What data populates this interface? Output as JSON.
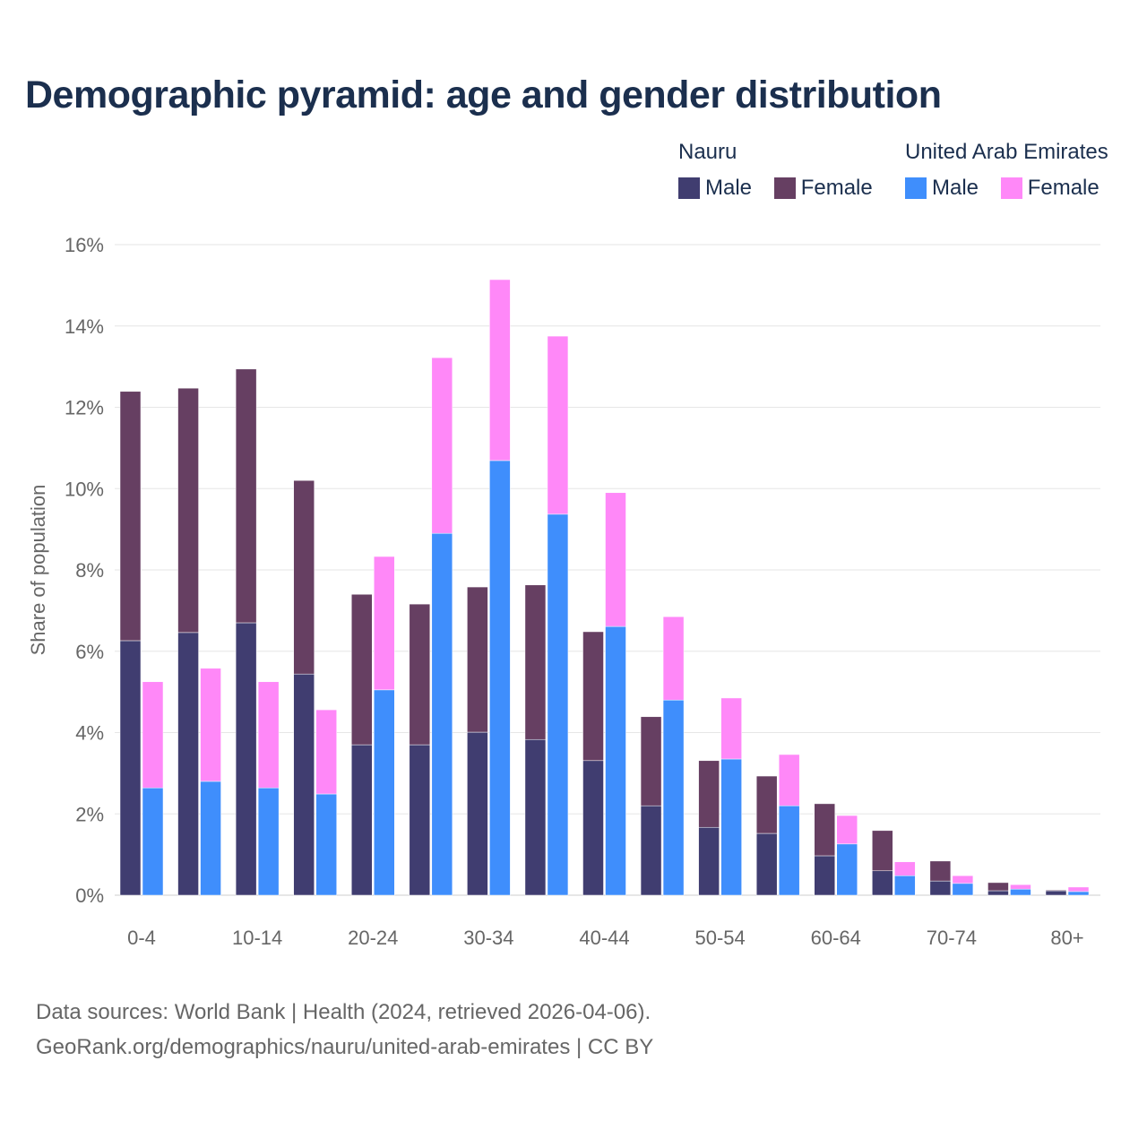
{
  "chart_data": {
    "type": "bar",
    "title": "Demographic pyramid: age and gender distribution",
    "ylabel": "Share of population",
    "xlabel": "",
    "ylim": [
      0,
      16
    ],
    "y_ticks": [
      "0%",
      "2%",
      "4%",
      "6%",
      "8%",
      "10%",
      "12%",
      "14%",
      "16%"
    ],
    "categories": [
      "0-4",
      "5-9",
      "10-14",
      "15-19",
      "20-24",
      "25-29",
      "30-34",
      "35-39",
      "40-44",
      "45-49",
      "50-54",
      "55-59",
      "60-64",
      "65-69",
      "70-74",
      "75-79",
      "80+"
    ],
    "x_tick_labels": [
      "0-4",
      "10-14",
      "20-24",
      "30-34",
      "40-44",
      "50-54",
      "60-64",
      "70-74",
      "80+"
    ],
    "grid": true,
    "legend_placement": "top-right",
    "stacked_groups": [
      {
        "name": "Nauru",
        "series": [
          {
            "name": "Male",
            "color": "#403d70",
            "values": [
              6.26,
              6.46,
              6.7,
              5.44,
              3.7,
              3.7,
              4.01,
              3.83,
              3.31,
              2.2,
              1.67,
              1.52,
              0.97,
              0.6,
              0.35,
              0.11,
              0.11
            ]
          },
          {
            "name": "Female",
            "color": "#663f62",
            "values": [
              6.13,
              6.01,
              6.24,
              4.76,
              3.7,
              3.46,
              3.57,
              3.8,
              3.17,
              2.19,
              1.64,
              1.41,
              1.28,
              0.99,
              0.49,
              0.2,
              0.02
            ]
          }
        ]
      },
      {
        "name": "United Arab Emirates",
        "series": [
          {
            "name": "Male",
            "color": "#3f8efc",
            "values": [
              2.64,
              2.8,
              2.64,
              2.49,
              5.05,
              8.9,
              10.69,
              9.37,
              6.61,
              4.8,
              3.35,
              2.2,
              1.26,
              0.48,
              0.29,
              0.15,
              0.09
            ]
          },
          {
            "name": "Female",
            "color": "#ff88f8",
            "values": [
              2.61,
              2.78,
              2.61,
              2.07,
              3.28,
              4.32,
              4.45,
              4.38,
              3.29,
              2.05,
              1.5,
              1.26,
              0.7,
              0.34,
              0.19,
              0.11,
              0.11
            ]
          }
        ]
      }
    ]
  },
  "footer": {
    "line1": "Data sources: World Bank | Health (2024, retrieved 2026-04-06).",
    "line2": "GeoRank.org/demographics/nauru/united-arab-emirates | CC BY"
  }
}
